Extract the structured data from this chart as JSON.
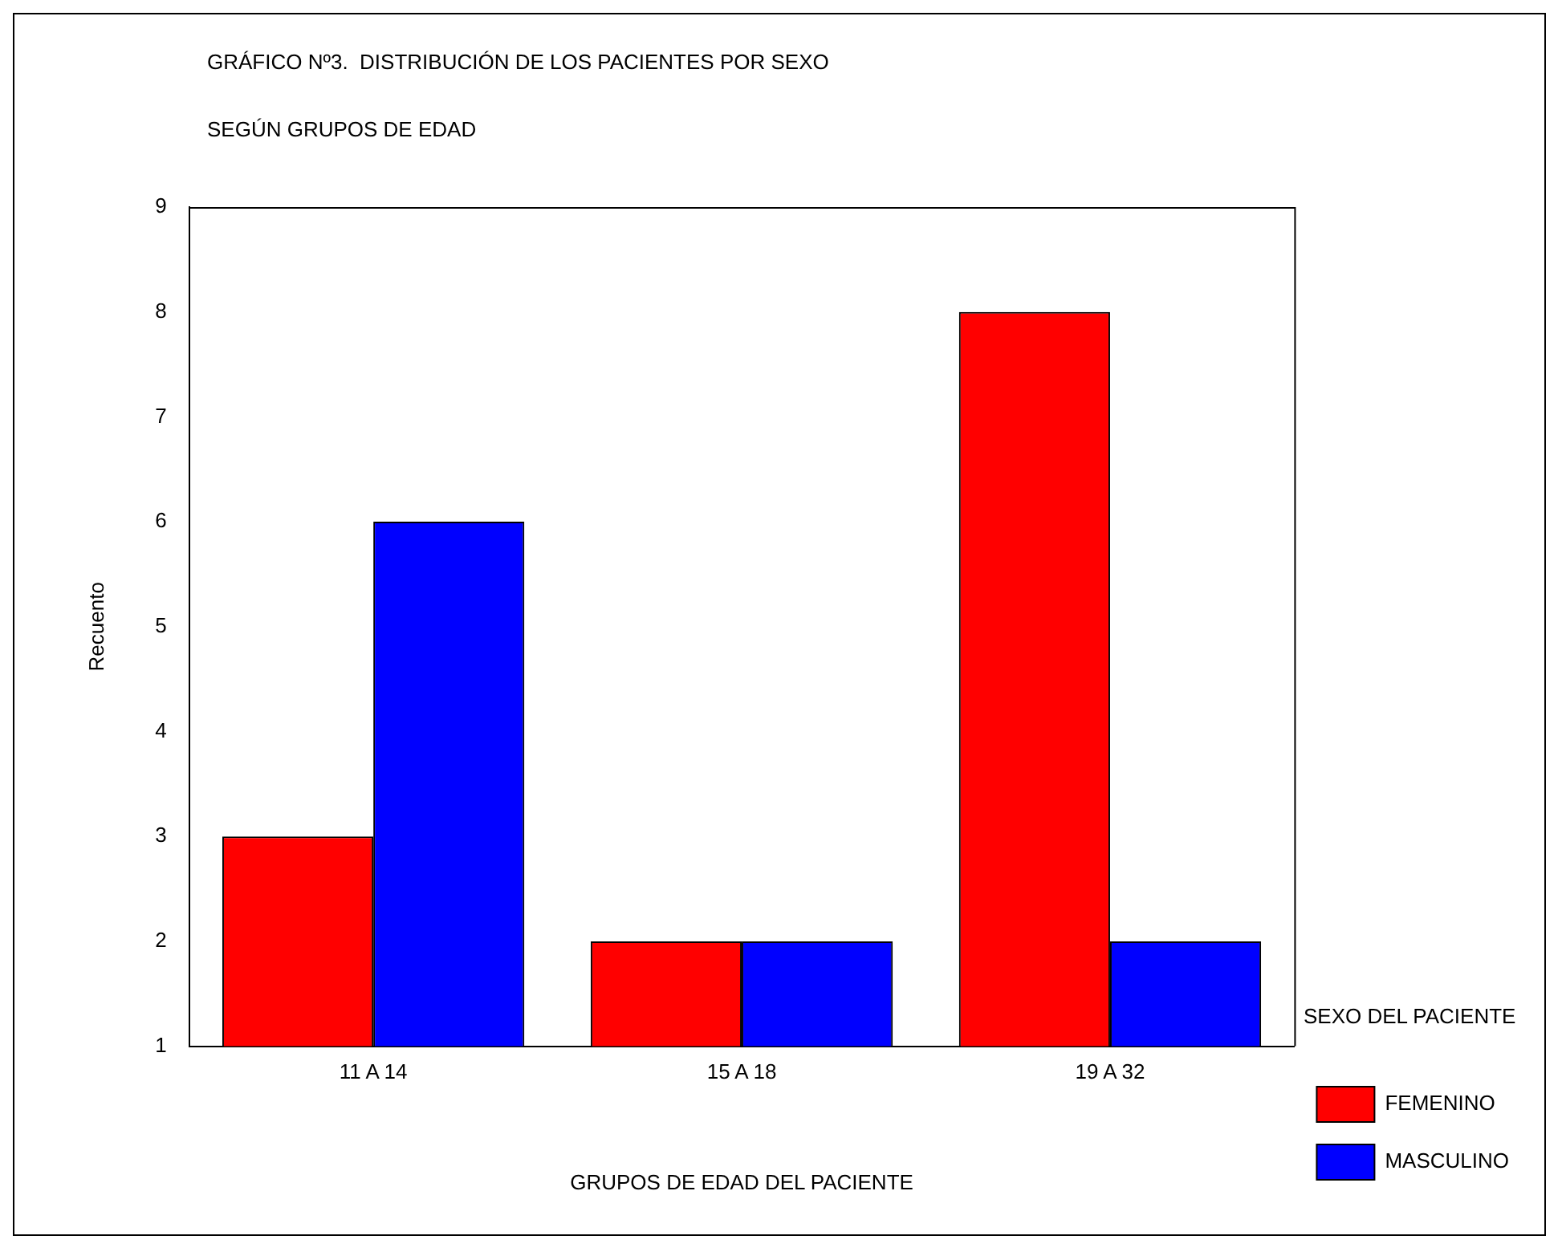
{
  "chart_data": {
    "type": "bar",
    "title": "GRÁFICO Nº3.  DISTRIBUCIÓN DE LOS PACIENTES POR SEXO",
    "subtitle": "SEGÚN GRUPOS DE EDAD",
    "xlabel": "GRUPOS DE EDAD DEL PACIENTE",
    "ylabel": "Recuento",
    "legend_title": "SEXO DEL PACIENTE",
    "legend": "right",
    "grid": false,
    "categories": [
      "11 A 14",
      "15 A 18",
      "19 A 32"
    ],
    "series": [
      {
        "name": "FEMENINO",
        "color": "#ff0000",
        "values": [
          3,
          2,
          8
        ]
      },
      {
        "name": "MASCULINO",
        "color": "#0000ff",
        "values": [
          6,
          2,
          2
        ]
      }
    ],
    "ylim": [
      1,
      9
    ],
    "yticks": [
      1,
      2,
      3,
      4,
      5,
      6,
      7,
      8,
      9
    ]
  }
}
